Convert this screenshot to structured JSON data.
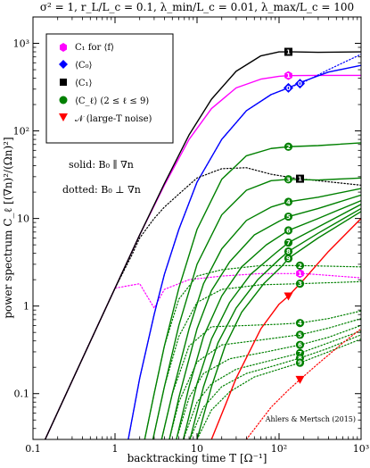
{
  "chart_data": {
    "type": "line",
    "title": "σ² = 1, r_L/L_c = 0.1, λ_min/L_c = 0.01, λ_max/L_c = 100",
    "xlabel": "backtracking time T [Ω⁻¹]",
    "ylabel": "power spectrum C_ℓ [(∇n)²/(Ωn)²]",
    "xscale": "log",
    "yscale": "log",
    "xlim": [
      0.1,
      1000
    ],
    "ylim": [
      0.03,
      2000
    ],
    "x_tick_labels": [
      "0.1",
      "1",
      "10",
      "10²",
      "10³"
    ],
    "y_tick_labels": [
      "0.1",
      "1",
      "10",
      "10²",
      "10³"
    ],
    "legend": {
      "position": "top-left",
      "entries": [
        {
          "label": "C₁ for ⟨f⟩",
          "color": "#ff00ff",
          "marker": "hexagon"
        },
        {
          "label": "⟨C₀⟩",
          "color": "#0000ff",
          "marker": "diamond"
        },
        {
          "label": "⟨C₁⟩",
          "color": "#000000",
          "marker": "square"
        },
        {
          "label": "⟨C_ℓ⟩ (2 ≤ ℓ ≤ 9)",
          "color": "#008000",
          "marker": "circle"
        },
        {
          "label": "𝒩 (large-T noise)",
          "color": "#ff0000",
          "marker": "triangle-down"
        }
      ]
    },
    "annotations": {
      "solid_note": "solid: B₀ ∥ ∇n",
      "dotted_note": "dotted: B₀ ⊥ ∇n",
      "credit": "Ahlers & Mertsch (2015)"
    },
    "series": [
      {
        "id": "C1_f_solid",
        "color": "#ff00ff",
        "style": "solid",
        "badge": "1",
        "marker_x": 130,
        "points": [
          [
            0.1,
            0.015
          ],
          [
            0.3,
            0.14
          ],
          [
            1,
            1.6
          ],
          [
            2,
            6.5
          ],
          [
            4,
            24
          ],
          [
            8,
            80
          ],
          [
            15,
            180
          ],
          [
            30,
            310
          ],
          [
            60,
            390
          ],
          [
            100,
            420
          ],
          [
            130,
            428
          ],
          [
            300,
            430
          ],
          [
            1000,
            430
          ]
        ]
      },
      {
        "id": "C1_f_dotted",
        "color": "#ff00ff",
        "style": "dotted",
        "badge": "1",
        "marker_x": 180,
        "points": [
          [
            0.1,
            0.015
          ],
          [
            0.3,
            0.14
          ],
          [
            1,
            1.6
          ],
          [
            2,
            1.8
          ],
          [
            3,
            0.95
          ],
          [
            4,
            1.55
          ],
          [
            8,
            2.0
          ],
          [
            20,
            2.2
          ],
          [
            60,
            2.35
          ],
          [
            200,
            2.35
          ],
          [
            1000,
            2.1
          ]
        ]
      },
      {
        "id": "C0_solid",
        "color": "#0000ff",
        "style": "solid",
        "badge": "0",
        "marker_x": 130,
        "points": [
          [
            1.45,
            0.03
          ],
          [
            2,
            0.15
          ],
          [
            3,
            0.8
          ],
          [
            4,
            2.3
          ],
          [
            6,
            7.5
          ],
          [
            10,
            26
          ],
          [
            20,
            80
          ],
          [
            40,
            170
          ],
          [
            80,
            260
          ],
          [
            130,
            310
          ],
          [
            200,
            370
          ],
          [
            400,
            470
          ],
          [
            1000,
            560
          ]
        ]
      },
      {
        "id": "C0_dotted",
        "color": "#0000ff",
        "style": "dotted",
        "badge": "0",
        "marker_x": 180,
        "points": [
          [
            1.45,
            0.03
          ],
          [
            2,
            0.15
          ],
          [
            3,
            0.8
          ],
          [
            4,
            2.3
          ],
          [
            6,
            7.5
          ],
          [
            10,
            26
          ],
          [
            20,
            80
          ],
          [
            40,
            170
          ],
          [
            80,
            260
          ],
          [
            130,
            310
          ],
          [
            200,
            360
          ],
          [
            400,
            500
          ],
          [
            1000,
            750
          ]
        ]
      },
      {
        "id": "C1_solid",
        "color": "#000000",
        "style": "solid",
        "badge": "1",
        "marker_x": 130,
        "points": [
          [
            0.1,
            0.015
          ],
          [
            0.3,
            0.14
          ],
          [
            1,
            1.6
          ],
          [
            2,
            6.5
          ],
          [
            4,
            25
          ],
          [
            8,
            90
          ],
          [
            15,
            230
          ],
          [
            30,
            480
          ],
          [
            60,
            720
          ],
          [
            100,
            800
          ],
          [
            150,
            800
          ],
          [
            300,
            790
          ],
          [
            1000,
            800
          ]
        ]
      },
      {
        "id": "C1_dotted",
        "color": "#000000",
        "style": "dotted",
        "badge": "1",
        "marker_x": 180,
        "points": [
          [
            0.1,
            0.015
          ],
          [
            0.3,
            0.14
          ],
          [
            1,
            1.6
          ],
          [
            1.6,
            3.8
          ],
          [
            2,
            6
          ],
          [
            3,
            10
          ],
          [
            4,
            13.5
          ],
          [
            6,
            19
          ],
          [
            10,
            29
          ],
          [
            20,
            37
          ],
          [
            40,
            38
          ],
          [
            80,
            32
          ],
          [
            150,
            29
          ],
          [
            300,
            27
          ],
          [
            1000,
            24
          ]
        ]
      },
      {
        "id": "C2_solid",
        "color": "#008000",
        "style": "solid",
        "badge": "2",
        "marker_x": 130,
        "points": [
          [
            2.3,
            0.03
          ],
          [
            3,
            0.1
          ],
          [
            4,
            0.35
          ],
          [
            6,
            1.6
          ],
          [
            10,
            7.5
          ],
          [
            20,
            28
          ],
          [
            40,
            52
          ],
          [
            80,
            63
          ],
          [
            130,
            66
          ],
          [
            300,
            68
          ],
          [
            1000,
            73
          ]
        ]
      },
      {
        "id": "C3_solid",
        "color": "#008000",
        "style": "solid",
        "badge": "3",
        "marker_x": 130,
        "points": [
          [
            2.9,
            0.03
          ],
          [
            4,
            0.12
          ],
          [
            6,
            0.6
          ],
          [
            10,
            3
          ],
          [
            20,
            11
          ],
          [
            40,
            21
          ],
          [
            80,
            27
          ],
          [
            130,
            28
          ],
          [
            300,
            27.5
          ],
          [
            1000,
            29
          ]
        ]
      },
      {
        "id": "C4_solid",
        "color": "#008000",
        "style": "solid",
        "badge": "4",
        "marker_x": 130,
        "points": [
          [
            3.7,
            0.03
          ],
          [
            5,
            0.1
          ],
          [
            8,
            0.55
          ],
          [
            12,
            1.8
          ],
          [
            20,
            4.5
          ],
          [
            40,
            9.5
          ],
          [
            80,
            13.5
          ],
          [
            130,
            15.5
          ],
          [
            300,
            17.5
          ],
          [
            1000,
            22
          ]
        ]
      },
      {
        "id": "C5_solid",
        "color": "#008000",
        "style": "solid",
        "badge": "5",
        "marker_x": 130,
        "points": [
          [
            4.6,
            0.03
          ],
          [
            6,
            0.09
          ],
          [
            10,
            0.55
          ],
          [
            15,
            1.5
          ],
          [
            25,
            3.2
          ],
          [
            50,
            6.5
          ],
          [
            100,
            9.3
          ],
          [
            130,
            10.5
          ],
          [
            300,
            13
          ],
          [
            1000,
            18.5
          ]
        ]
      },
      {
        "id": "C6_solid",
        "color": "#008000",
        "style": "solid",
        "badge": "6",
        "marker_x": 130,
        "points": [
          [
            5.6,
            0.03
          ],
          [
            8,
            0.12
          ],
          [
            12,
            0.45
          ],
          [
            20,
            1.3
          ],
          [
            35,
            2.8
          ],
          [
            70,
            5
          ],
          [
            130,
            7.3
          ],
          [
            300,
            10
          ],
          [
            1000,
            16
          ]
        ]
      },
      {
        "id": "C7_solid",
        "color": "#008000",
        "style": "solid",
        "badge": "7",
        "marker_x": 130,
        "points": [
          [
            6.8,
            0.03
          ],
          [
            10,
            0.13
          ],
          [
            15,
            0.42
          ],
          [
            25,
            1.1
          ],
          [
            45,
            2.3
          ],
          [
            90,
            4
          ],
          [
            130,
            5.3
          ],
          [
            300,
            8
          ],
          [
            1000,
            14.5
          ]
        ]
      },
      {
        "id": "C8_solid",
        "color": "#008000",
        "style": "solid",
        "badge": "8",
        "marker_x": 130,
        "points": [
          [
            8.2,
            0.03
          ],
          [
            12,
            0.12
          ],
          [
            18,
            0.38
          ],
          [
            30,
            0.95
          ],
          [
            55,
            2
          ],
          [
            100,
            3.4
          ],
          [
            130,
            4.2
          ],
          [
            300,
            6.8
          ],
          [
            1000,
            13
          ]
        ]
      },
      {
        "id": "C9_solid",
        "color": "#008000",
        "style": "solid",
        "badge": "9",
        "marker_x": 130,
        "points": [
          [
            10,
            0.03
          ],
          [
            15,
            0.12
          ],
          [
            22,
            0.35
          ],
          [
            35,
            0.85
          ],
          [
            65,
            1.8
          ],
          [
            110,
            2.9
          ],
          [
            130,
            3.5
          ],
          [
            300,
            6
          ],
          [
            1000,
            12
          ]
        ]
      },
      {
        "id": "C2_dotted",
        "color": "#008000",
        "style": "dotted",
        "badge": "2",
        "marker_x": 180,
        "points": [
          [
            2.3,
            0.03
          ],
          [
            3,
            0.1
          ],
          [
            4,
            0.35
          ],
          [
            6,
            1.2
          ],
          [
            10,
            2.2
          ],
          [
            20,
            2.6
          ],
          [
            60,
            2.9
          ],
          [
            180,
            2.9
          ],
          [
            1000,
            2.8
          ]
        ]
      },
      {
        "id": "C3_dotted",
        "color": "#008000",
        "style": "dotted",
        "badge": "3",
        "marker_x": 180,
        "points": [
          [
            2.9,
            0.03
          ],
          [
            4,
            0.12
          ],
          [
            6,
            0.45
          ],
          [
            10,
            1.1
          ],
          [
            20,
            1.55
          ],
          [
            60,
            1.75
          ],
          [
            180,
            1.8
          ],
          [
            1000,
            1.9
          ]
        ]
      },
      {
        "id": "C4_dotted",
        "color": "#008000",
        "style": "dotted",
        "badge": "4",
        "marker_x": 180,
        "points": [
          [
            3.7,
            0.03
          ],
          [
            5,
            0.1
          ],
          [
            8,
            0.35
          ],
          [
            15,
            0.58
          ],
          [
            40,
            0.6
          ],
          [
            100,
            0.62
          ],
          [
            180,
            0.64
          ],
          [
            400,
            0.72
          ],
          [
            1000,
            0.88
          ]
        ]
      },
      {
        "id": "C5_dotted",
        "color": "#008000",
        "style": "dotted",
        "badge": "5",
        "marker_x": 180,
        "points": [
          [
            4.6,
            0.03
          ],
          [
            6,
            0.08
          ],
          [
            10,
            0.23
          ],
          [
            20,
            0.36
          ],
          [
            60,
            0.41
          ],
          [
            180,
            0.47
          ],
          [
            400,
            0.56
          ],
          [
            1000,
            0.72
          ]
        ]
      },
      {
        "id": "C6_dotted",
        "color": "#008000",
        "style": "dotted",
        "badge": "6",
        "marker_x": 180,
        "points": [
          [
            5.6,
            0.03
          ],
          [
            8,
            0.09
          ],
          [
            12,
            0.17
          ],
          [
            25,
            0.25
          ],
          [
            70,
            0.3
          ],
          [
            180,
            0.36
          ],
          [
            400,
            0.44
          ],
          [
            1000,
            0.6
          ]
        ]
      },
      {
        "id": "C7_dotted",
        "color": "#008000",
        "style": "dotted",
        "badge": "7",
        "marker_x": 180,
        "points": [
          [
            6.8,
            0.03
          ],
          [
            10,
            0.08
          ],
          [
            15,
            0.13
          ],
          [
            30,
            0.19
          ],
          [
            80,
            0.24
          ],
          [
            180,
            0.29
          ],
          [
            400,
            0.38
          ],
          [
            1000,
            0.52
          ]
        ]
      },
      {
        "id": "C8_dotted",
        "color": "#008000",
        "style": "dotted",
        "badge": "8",
        "marker_x": 180,
        "points": [
          [
            8.2,
            0.03
          ],
          [
            12,
            0.07
          ],
          [
            20,
            0.12
          ],
          [
            40,
            0.17
          ],
          [
            90,
            0.21
          ],
          [
            180,
            0.255
          ],
          [
            400,
            0.33
          ],
          [
            1000,
            0.47
          ]
        ]
      },
      {
        "id": "C9_dotted",
        "color": "#008000",
        "style": "dotted",
        "badge": "9",
        "marker_x": 180,
        "points": [
          [
            10,
            0.03
          ],
          [
            15,
            0.065
          ],
          [
            25,
            0.105
          ],
          [
            50,
            0.155
          ],
          [
            100,
            0.19
          ],
          [
            180,
            0.225
          ],
          [
            400,
            0.3
          ],
          [
            1000,
            0.42
          ]
        ]
      },
      {
        "id": "N_solid",
        "color": "#ff0000",
        "style": "solid",
        "badge": "",
        "marker_x": 130,
        "points": [
          [
            15,
            0.03
          ],
          [
            30,
            0.15
          ],
          [
            60,
            0.55
          ],
          [
            100,
            1.05
          ],
          [
            130,
            1.3
          ],
          [
            200,
            2
          ],
          [
            400,
            4.2
          ],
          [
            1000,
            10
          ]
        ]
      },
      {
        "id": "N_dotted",
        "color": "#ff0000",
        "style": "dotted",
        "badge": "",
        "marker_x": 180,
        "points": [
          [
            40,
            0.03
          ],
          [
            80,
            0.07
          ],
          [
            130,
            0.11
          ],
          [
            180,
            0.145
          ],
          [
            300,
            0.22
          ],
          [
            600,
            0.38
          ],
          [
            1000,
            0.55
          ]
        ]
      }
    ]
  }
}
